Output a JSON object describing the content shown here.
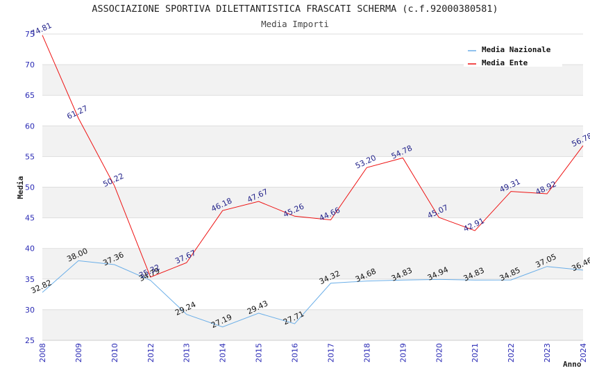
{
  "chart_data": {
    "type": "line",
    "title": "ASSOCIAZIONE SPORTIVA DILETTANTISTICA FRASCATI SCHERMA (c.f.92000380581)",
    "subtitle": "Media Importi",
    "xlabel": "Anno",
    "ylabel": "Media",
    "ylim": [
      25,
      75
    ],
    "yticks": [
      25,
      30,
      35,
      40,
      45,
      50,
      55,
      60,
      65,
      70,
      75
    ],
    "categories": [
      "2008",
      "2009",
      "2010",
      "2012",
      "2013",
      "2014",
      "2015",
      "2016",
      "2017",
      "2018",
      "2019",
      "2020",
      "2021",
      "2022",
      "2023",
      "2024"
    ],
    "legend_position": "top-right",
    "series": [
      {
        "name": "Media Nazionale",
        "color": "#6aaee8",
        "values": [
          32.82,
          38.0,
          37.36,
          34.79,
          29.24,
          27.19,
          29.43,
          27.71,
          34.32,
          34.68,
          34.83,
          34.94,
          34.83,
          34.85,
          37.05,
          36.46
        ],
        "labels": [
          "32.82",
          "38.00",
          "37.36",
          "34.79",
          "29.24",
          "27.19",
          "29.43",
          "27.71",
          "34.32",
          "34.68",
          "34.83",
          "34.94",
          "34.83",
          "34.85",
          "37.05",
          "36.46"
        ]
      },
      {
        "name": "Media Ente",
        "color": "#ee1111",
        "values": [
          74.81,
          61.27,
          50.22,
          35.32,
          37.67,
          46.18,
          47.67,
          45.26,
          44.66,
          53.2,
          54.78,
          45.07,
          42.91,
          49.31,
          48.92,
          56.78
        ],
        "labels": [
          "74.81",
          "61.27",
          "50.22",
          "35.32",
          "37.67",
          "46.18",
          "47.67",
          "45.26",
          "44.66",
          "53.20",
          "54.78",
          "45.07",
          "42.91",
          "49.31",
          "48.92",
          "56.78"
        ]
      }
    ]
  }
}
